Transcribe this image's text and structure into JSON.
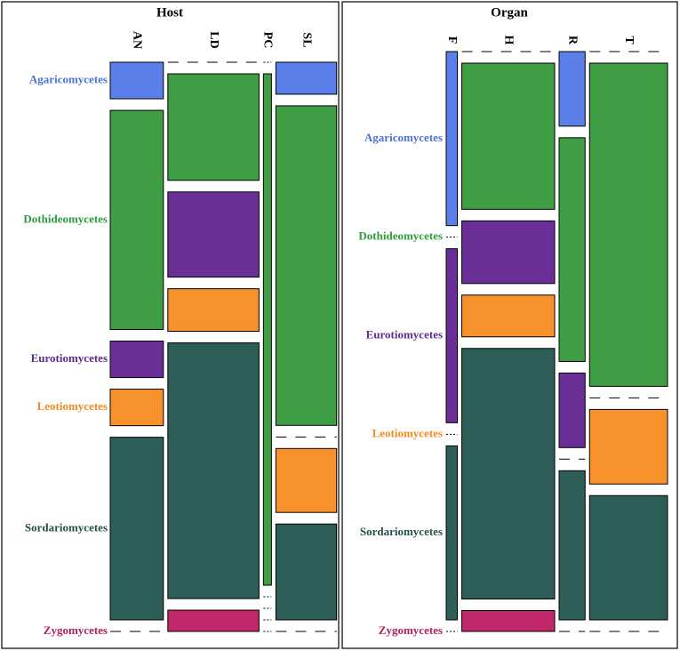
{
  "chart_data": [
    {
      "type": "mosaic",
      "title": "Host",
      "columns": [
        "AN",
        "LD",
        "PC",
        "SL"
      ],
      "rows": [
        {
          "name": "Agaricomycetes",
          "color": "#5b7fe8",
          "label_color": "#4a72d8"
        },
        {
          "name": "Dothideomycetes",
          "color": "#3f9e44",
          "label_color": "#2e9a3c"
        },
        {
          "name": "Eurotiomycetes",
          "color": "#6a2f96",
          "label_color": "#5e2a8c"
        },
        {
          "name": "Leotiomycetes",
          "color": "#f7912b",
          "label_color": "#f08a20"
        },
        {
          "name": "Sordariomycetes",
          "color": "#2d5e57",
          "label_color": "#254f49"
        },
        {
          "name": "Zygomycetes",
          "color": "#c0286a",
          "label_color": "#b0205e"
        }
      ],
      "values": [
        [
          1,
          6,
          1,
          1,
          5,
          0
        ],
        [
          0,
          5,
          4,
          2,
          12,
          1
        ],
        [
          0,
          1,
          0,
          0,
          0,
          0
        ],
        [
          1,
          10,
          0,
          2,
          3,
          0
        ]
      ]
    },
    {
      "type": "mosaic",
      "title": "Organ",
      "columns": [
        "F",
        "H",
        "R",
        "T"
      ],
      "rows": [
        {
          "name": "Agaricomycetes",
          "color": "#5b7fe8",
          "label_color": "#4a72d8"
        },
        {
          "name": "Dothideomycetes",
          "color": "#3f9e44",
          "label_color": "#2e9a3c"
        },
        {
          "name": "Eurotiomycetes",
          "color": "#6a2f96",
          "label_color": "#5e2a8c"
        },
        {
          "name": "Leotiomycetes",
          "color": "#f7912b",
          "label_color": "#f08a20"
        },
        {
          "name": "Sordariomycetes",
          "color": "#2d5e57",
          "label_color": "#254f49"
        },
        {
          "name": "Zygomycetes",
          "color": "#c0286a",
          "label_color": "#b0205e"
        }
      ],
      "values": [
        [
          1,
          0,
          1,
          0,
          1,
          0
        ],
        [
          0,
          7,
          3,
          2,
          12,
          1
        ],
        [
          1,
          3,
          1,
          0,
          2,
          0
        ],
        [
          0,
          13,
          0,
          3,
          5,
          0
        ]
      ]
    }
  ]
}
